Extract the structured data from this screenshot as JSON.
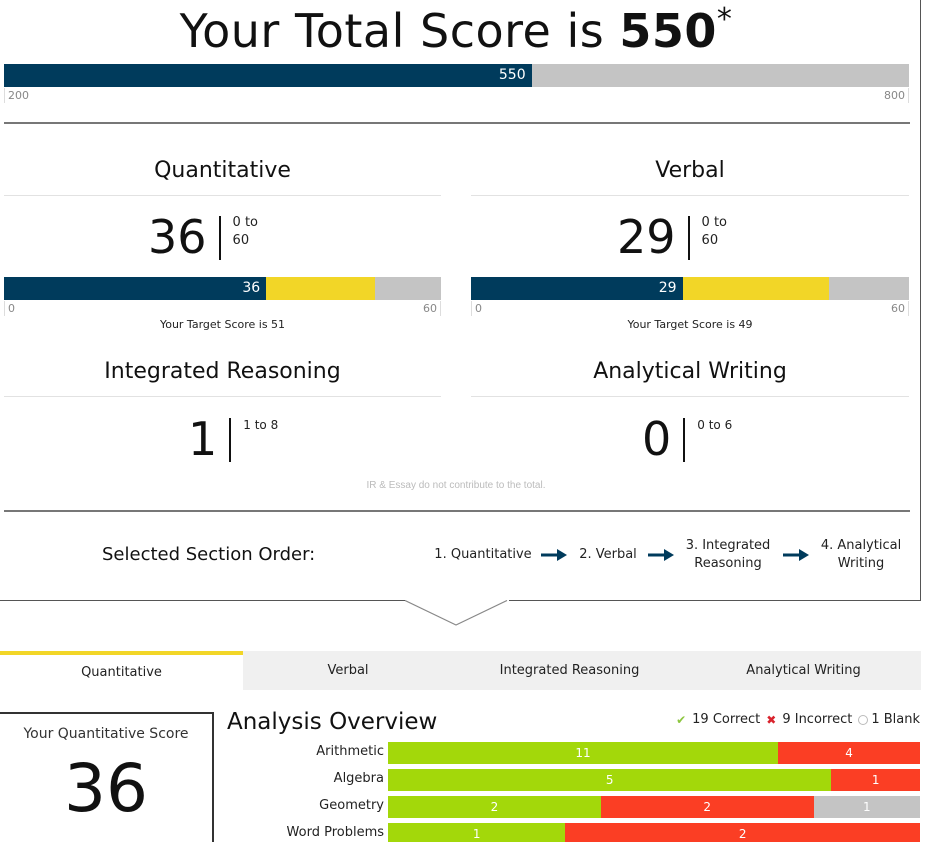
{
  "total": {
    "title_prefix": "Your Total Score is ",
    "score": "550",
    "asterisk": "*",
    "bar_label": "550",
    "min": "200",
    "max": "800",
    "fill_pct": 58.3
  },
  "sections": {
    "quant": {
      "title": "Quantitative",
      "score": "36",
      "range": "0 to 60",
      "bar_label": "36",
      "min": "0",
      "max": "60",
      "target_text": "Your Target Score is 51",
      "fill_pct": 60,
      "target_pct": 85
    },
    "verbal": {
      "title": "Verbal",
      "score": "29",
      "range": "0 to 60",
      "bar_label": "29",
      "min": "0",
      "max": "60",
      "target_text": "Your Target Score is 49",
      "fill_pct": 48.3,
      "target_pct": 81.7
    },
    "ir": {
      "title": "Integrated Reasoning",
      "score": "1",
      "range": "1 to 8"
    },
    "awa": {
      "title": "Analytical Writing",
      "score": "0",
      "range": "0 to 6"
    }
  },
  "note": "IR & Essay do not contribute to the total.",
  "order": {
    "label": "Selected Section Order:",
    "steps": [
      "1. Quantitative",
      "2. Verbal",
      "3. Integrated Reasoning",
      "4. Analytical Writing"
    ]
  },
  "tabs": [
    {
      "label": "Quantitative",
      "active": true
    },
    {
      "label": "Verbal",
      "active": false
    },
    {
      "label": "Integrated Reasoning",
      "active": false
    },
    {
      "label": "Analytical Writing",
      "active": false
    }
  ],
  "quant_panel": {
    "score_label": "Your Quantitative Score",
    "score": "36",
    "analysis_title": "Analysis Overview",
    "legend": {
      "correct": "19 Correct",
      "incorrect": "9 Incorrect",
      "blank": "1 Blank"
    },
    "categories": [
      {
        "name": "Arithmetic",
        "correct": 11,
        "incorrect": 4,
        "blank": 0
      },
      {
        "name": "Algebra",
        "correct": 5,
        "incorrect": 1,
        "blank": 0
      },
      {
        "name": "Geometry",
        "correct": 2,
        "incorrect": 2,
        "blank": 1
      },
      {
        "name": "Word Problems",
        "correct": 1,
        "incorrect": 2,
        "blank": 0
      }
    ]
  },
  "colors": {
    "navy": "#003b5c",
    "target_yellow": "#f2d627",
    "gray": "#c4c4c4",
    "correct_green": "#a3d80a",
    "incorrect_red": "#fb3e24"
  }
}
